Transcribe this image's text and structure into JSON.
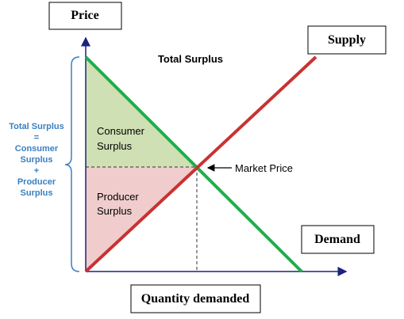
{
  "title": "Total Surplus",
  "axes": {
    "y": "Price",
    "x": "Quantity demanded"
  },
  "curves": {
    "supply": "Supply",
    "demand": "Demand"
  },
  "areas": {
    "consumer": [
      "Consumer",
      "Surplus"
    ],
    "producer": [
      "Producer",
      "Surplus"
    ]
  },
  "equilibrium": "Market Price",
  "brace_label": [
    "Total Surplus",
    "=",
    "Consumer",
    "Surplus",
    "+",
    "Producer",
    "Surplus"
  ]
}
